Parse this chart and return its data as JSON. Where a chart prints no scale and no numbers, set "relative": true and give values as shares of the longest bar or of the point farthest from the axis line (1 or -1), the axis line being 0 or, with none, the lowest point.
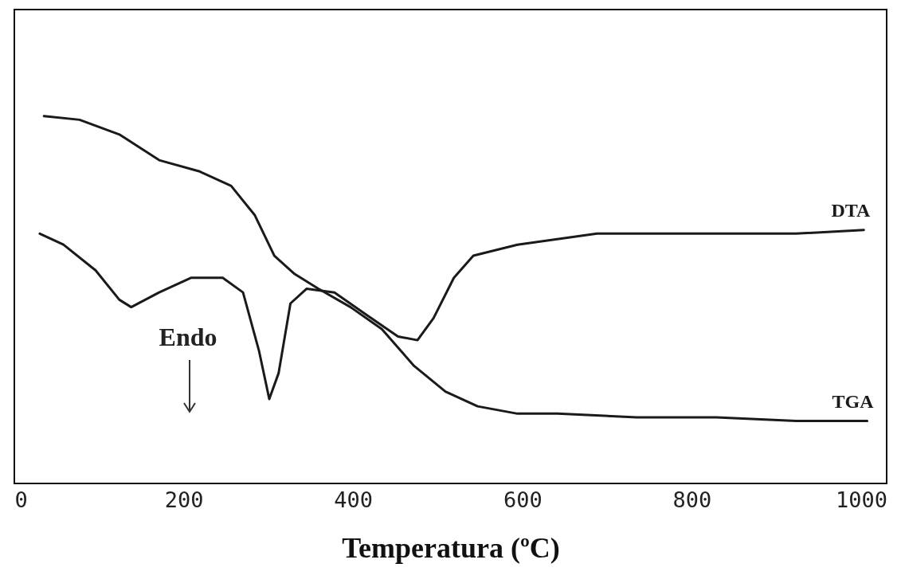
{
  "chart_data": {
    "type": "line",
    "relative": true,
    "xlabel": "Temperatura (ºC)",
    "xlim": [
      0,
      1030
    ],
    "xticks": [
      0,
      200,
      400,
      600,
      800,
      1000
    ],
    "grid": false,
    "annotations": [
      "Endo"
    ],
    "series": [
      {
        "name": "DTA",
        "color": "#1a1a1a",
        "x": [
          30,
          58,
          96,
          124,
          138,
          171,
          209,
          246,
          270,
          289,
          301,
          312,
          326,
          345,
          378,
          415,
          453,
          476,
          495,
          519,
          542,
          594,
          688,
          829,
          923,
          1003
        ],
        "values": [
          0.68,
          0.65,
          0.58,
          0.5,
          0.48,
          0.52,
          0.56,
          0.56,
          0.52,
          0.36,
          0.23,
          0.3,
          0.49,
          0.53,
          0.52,
          0.46,
          0.4,
          0.39,
          0.45,
          0.56,
          0.62,
          0.65,
          0.68,
          0.68,
          0.68,
          0.69
        ]
      },
      {
        "name": "TGA",
        "color": "#1a1a1a",
        "x": [
          35,
          77,
          124,
          171,
          218,
          256,
          284,
          307,
          331,
          359,
          397,
          434,
          472,
          509,
          547,
          594,
          641,
          735,
          829,
          923,
          1007
        ],
        "values": [
          1.0,
          0.99,
          0.95,
          0.88,
          0.85,
          0.81,
          0.73,
          0.62,
          0.57,
          0.53,
          0.48,
          0.42,
          0.32,
          0.25,
          0.21,
          0.19,
          0.19,
          0.18,
          0.18,
          0.17,
          0.17
        ]
      }
    ]
  }
}
